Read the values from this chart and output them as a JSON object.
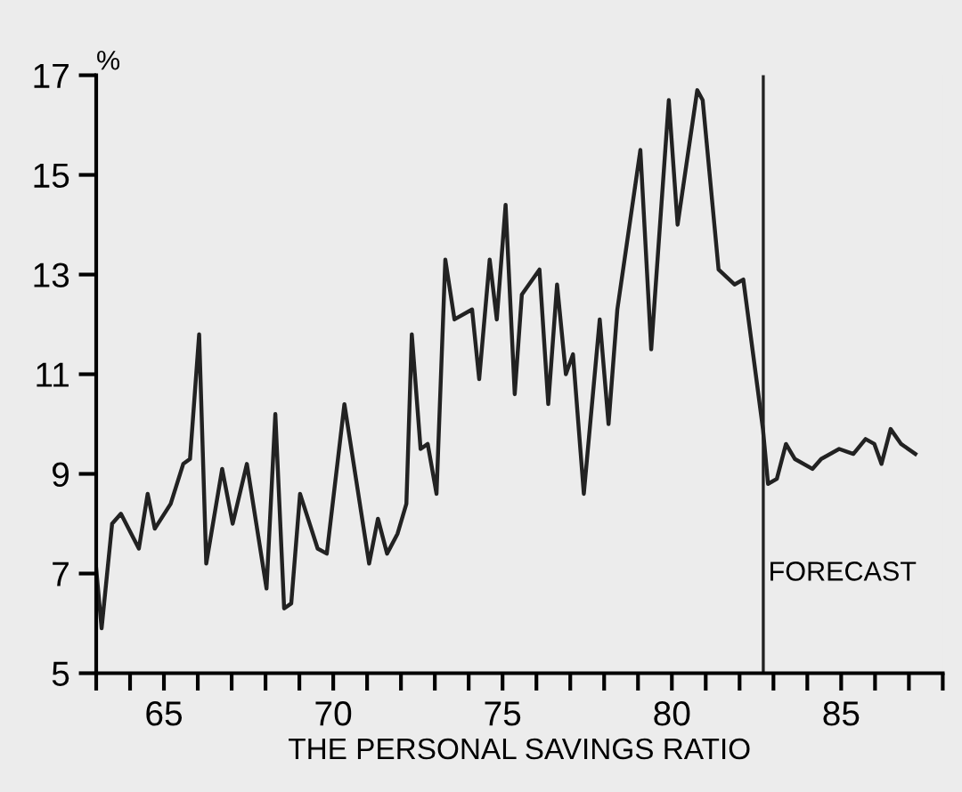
{
  "chart_data": {
    "type": "line",
    "xlabel": "THE PERSONAL SAVINGS RATIO",
    "ylabel": "%",
    "x": [
      63.0,
      63.16,
      63.47,
      63.73,
      64.26,
      64.52,
      64.73,
      65.2,
      65.57,
      65.77,
      66.04,
      66.25,
      66.72,
      67.03,
      67.45,
      68.03,
      68.29,
      68.55,
      68.76,
      69.02,
      69.54,
      69.81,
      70.33,
      71.06,
      71.32,
      71.59,
      71.9,
      72.16,
      72.32,
      72.58,
      72.79,
      73.05,
      73.31,
      73.58,
      74.1,
      74.31,
      74.62,
      74.83,
      75.09,
      75.36,
      75.57,
      76.09,
      76.35,
      76.61,
      76.87,
      77.08,
      77.4,
      77.87,
      78.13,
      78.39,
      79.07,
      79.39,
      79.91,
      80.17,
      80.75,
      80.91,
      81.38,
      81.85,
      82.11,
      82.69,
      82.84,
      83.1,
      83.37,
      83.63,
      84.15,
      84.41,
      84.94,
      85.36,
      85.72,
      85.98,
      86.19,
      86.46,
      86.77,
      87.19
    ],
    "series": [
      {
        "color": "#222222",
        "values": [
          7.1,
          5.9,
          8.0,
          8.2,
          7.5,
          8.6,
          7.9,
          8.4,
          9.2,
          9.3,
          11.8,
          7.2,
          9.1,
          8.0,
          9.2,
          6.7,
          10.2,
          6.3,
          6.4,
          8.6,
          7.5,
          7.4,
          10.4,
          7.2,
          8.1,
          7.4,
          7.8,
          8.4,
          11.8,
          9.5,
          9.6,
          8.6,
          13.3,
          12.1,
          12.3,
          10.9,
          13.3,
          12.1,
          14.4,
          10.6,
          12.6,
          13.1,
          10.4,
          12.8,
          11.0,
          11.4,
          8.6,
          12.1,
          10.0,
          12.3,
          15.5,
          11.5,
          16.5,
          14.0,
          16.7,
          16.5,
          13.1,
          12.8,
          12.9,
          9.9,
          8.8,
          8.9,
          9.6,
          9.3,
          9.1,
          9.3,
          9.5,
          9.4,
          9.7,
          9.6,
          9.2,
          9.9,
          9.6,
          9.4
        ]
      }
    ],
    "xlim": [
      63,
      88
    ],
    "ylim": [
      5,
      17
    ],
    "xticks": [
      {
        "value": 63,
        "label": null
      },
      {
        "value": 64,
        "label": null
      },
      65,
      {
        "value": 66,
        "label": null
      },
      {
        "value": 67,
        "label": null
      },
      {
        "value": 68,
        "label": null
      },
      {
        "value": 69,
        "label": null
      },
      70,
      {
        "value": 71,
        "label": null
      },
      {
        "value": 72,
        "label": null
      },
      {
        "value": 73,
        "label": null
      },
      {
        "value": 74,
        "label": null
      },
      75,
      {
        "value": 76,
        "label": null
      },
      {
        "value": 77,
        "label": null
      },
      {
        "value": 78,
        "label": null
      },
      {
        "value": 79,
        "label": null
      },
      80,
      {
        "value": 81,
        "label": null
      },
      {
        "value": 82,
        "label": null
      },
      {
        "value": 83,
        "label": null
      },
      {
        "value": 84,
        "label": null
      },
      85,
      {
        "value": 86,
        "label": null
      },
      {
        "value": 87,
        "label": null
      },
      {
        "value": 88,
        "label": null
      }
    ],
    "yticks": [
      5,
      7,
      9,
      11,
      13,
      15,
      17
    ],
    "ref_lines": [
      {
        "axis": "x",
        "value": 82.7,
        "label": "FORECAST",
        "color": "#222222"
      }
    ],
    "grid": false,
    "legend": false
  }
}
